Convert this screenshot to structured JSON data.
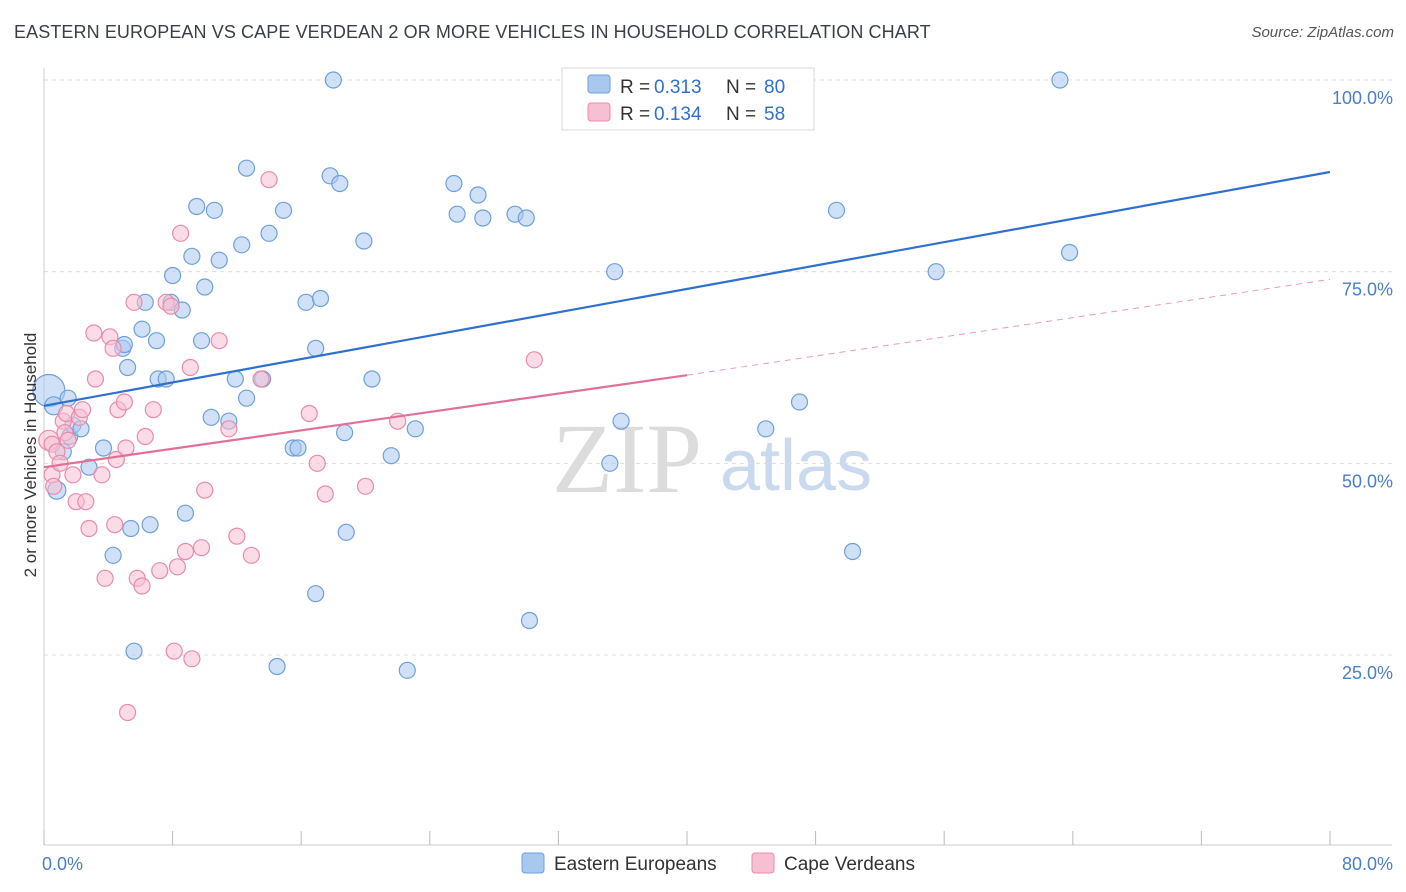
{
  "title": "EASTERN EUROPEAN VS CAPE VERDEAN 2 OR MORE VEHICLES IN HOUSEHOLD CORRELATION CHART",
  "source": "Source: ZipAtlas.com",
  "watermark": {
    "zip": "ZIP",
    "atlas": "atlas"
  },
  "chart_data": {
    "type": "scatter",
    "xlabel": "",
    "ylabel": "2 or more Vehicles in Household",
    "xlim": [
      0,
      80
    ],
    "ylim": [
      0,
      102
    ],
    "x_tick_labels": [
      "0.0%",
      "80.0%"
    ],
    "y_ticks": [
      {
        "value": 25,
        "label": "25.0%"
      },
      {
        "value": 50,
        "label": "50.0%"
      },
      {
        "value": 75,
        "label": "75.0%"
      },
      {
        "value": 100,
        "label": "100.0%"
      }
    ],
    "legend": {
      "rows": [
        {
          "r_label": "R = ",
          "r_value": "0.313",
          "n_label": "N = ",
          "n_value": "80"
        },
        {
          "r_label": "R = ",
          "r_value": "0.134",
          "n_label": "N = ",
          "n_value": "58"
        }
      ]
    },
    "series": [
      {
        "name": "Eastern Europeans",
        "color": "#a9c8f0",
        "stroke": "#6f9fd8",
        "line_color": "#2f6fce",
        "trend": {
          "x0": 0,
          "y0": 57.5,
          "x1": 80,
          "y1": 88
        },
        "points": [
          [
            0.3,
            59.5,
            16
          ],
          [
            0.6,
            57.5,
            9
          ],
          [
            0.8,
            46.5,
            9
          ],
          [
            1.2,
            51.5,
            8
          ],
          [
            1.5,
            58.5,
            8
          ],
          [
            1.6,
            53.5,
            8
          ],
          [
            1.8,
            55,
            8
          ],
          [
            2.3,
            54.5,
            8
          ],
          [
            2.8,
            49.5,
            8
          ],
          [
            3.7,
            52,
            8
          ],
          [
            4.3,
            38,
            8
          ],
          [
            4.9,
            65,
            8
          ],
          [
            5,
            65.5,
            8
          ],
          [
            5.2,
            62.5,
            8
          ],
          [
            5.4,
            41.5,
            8
          ],
          [
            5.6,
            25.5,
            8
          ],
          [
            6.1,
            67.5,
            8
          ],
          [
            6.3,
            71,
            8
          ],
          [
            6.6,
            42,
            8
          ],
          [
            7.0,
            66,
            8
          ],
          [
            7.1,
            61,
            8
          ],
          [
            7.6,
            61,
            8
          ],
          [
            7.9,
            71,
            8
          ],
          [
            8.0,
            74.5,
            8
          ],
          [
            8.6,
            70,
            8
          ],
          [
            8.8,
            43.5,
            8
          ],
          [
            9.2,
            77,
            8
          ],
          [
            9.5,
            83.5,
            8
          ],
          [
            9.8,
            66,
            8
          ],
          [
            10.0,
            73,
            8
          ],
          [
            10.4,
            56,
            8
          ],
          [
            10.6,
            83,
            8
          ],
          [
            10.9,
            76.5,
            8
          ],
          [
            11.5,
            55.5,
            8
          ],
          [
            11.9,
            61,
            8
          ],
          [
            12.3,
            78.5,
            8
          ],
          [
            12.6,
            58.5,
            8
          ],
          [
            12.6,
            88.5,
            8
          ],
          [
            13.6,
            61,
            8
          ],
          [
            14.0,
            80,
            8
          ],
          [
            14.5,
            23.5,
            8
          ],
          [
            14.9,
            83,
            8
          ],
          [
            15.5,
            52,
            8
          ],
          [
            15.8,
            52,
            8
          ],
          [
            16.3,
            71,
            8
          ],
          [
            16.9,
            65,
            8
          ],
          [
            16.9,
            33,
            8
          ],
          [
            17.2,
            71.5,
            8
          ],
          [
            17.8,
            87.5,
            8
          ],
          [
            18.0,
            100,
            8
          ],
          [
            18.4,
            86.5,
            8
          ],
          [
            18.7,
            54,
            8
          ],
          [
            18.8,
            41,
            8
          ],
          [
            19.9,
            79,
            8
          ],
          [
            20.4,
            61,
            8
          ],
          [
            21.6,
            51,
            8
          ],
          [
            22.6,
            23,
            8
          ],
          [
            23.1,
            54.5,
            8
          ],
          [
            25.5,
            86.5,
            8
          ],
          [
            25.7,
            82.5,
            8
          ],
          [
            27.0,
            85,
            8
          ],
          [
            27.3,
            82,
            8
          ],
          [
            29.3,
            82.5,
            8
          ],
          [
            30.0,
            82,
            8
          ],
          [
            30.2,
            29.5,
            8
          ],
          [
            35.2,
            50,
            8
          ],
          [
            35.5,
            75,
            8
          ],
          [
            35.9,
            55.5,
            8
          ],
          [
            39.3,
            100,
            8
          ],
          [
            44.9,
            54.5,
            8
          ],
          [
            47.0,
            58,
            8
          ],
          [
            49.3,
            83,
            8
          ],
          [
            50.3,
            38.5,
            8
          ],
          [
            55.5,
            75,
            8
          ],
          [
            63.2,
            100,
            8
          ],
          [
            63.8,
            77.5,
            8
          ]
        ]
      },
      {
        "name": "Cape Verdeans",
        "color": "#f7bfd2",
        "stroke": "#e88aab",
        "line_color": "#e36f95",
        "trend": {
          "x0": 0,
          "y0": 49.5,
          "x1": 40,
          "y1": 61.5
        },
        "trend_ext": {
          "x0": 40,
          "y0": 61.5,
          "x1": 80,
          "y1": 74
        },
        "points": [
          [
            0.3,
            53,
            10
          ],
          [
            0.5,
            52.5,
            8
          ],
          [
            0.5,
            48.5,
            8
          ],
          [
            0.6,
            47,
            8
          ],
          [
            0.8,
            51.5,
            8
          ],
          [
            1.0,
            50,
            8
          ],
          [
            1.2,
            55.5,
            8
          ],
          [
            1.3,
            54,
            8
          ],
          [
            1.4,
            56.5,
            8
          ],
          [
            1.5,
            53,
            8
          ],
          [
            1.8,
            48.5,
            8
          ],
          [
            2.0,
            45,
            8
          ],
          [
            2.2,
            56,
            8
          ],
          [
            2.4,
            57,
            8
          ],
          [
            2.6,
            45,
            8
          ],
          [
            2.8,
            41.5,
            8
          ],
          [
            3.1,
            67,
            8
          ],
          [
            3.2,
            61,
            8
          ],
          [
            3.6,
            48.5,
            8
          ],
          [
            3.8,
            35,
            8
          ],
          [
            4.1,
            66.5,
            8
          ],
          [
            4.3,
            65,
            8
          ],
          [
            4.4,
            42,
            8
          ],
          [
            4.5,
            50.5,
            8
          ],
          [
            4.6,
            57,
            8
          ],
          [
            5.0,
            58,
            8
          ],
          [
            5.1,
            52,
            8
          ],
          [
            5.2,
            17.5,
            8
          ],
          [
            5.6,
            71,
            8
          ],
          [
            5.8,
            35,
            8
          ],
          [
            6.1,
            34,
            8
          ],
          [
            6.3,
            53.5,
            8
          ],
          [
            6.8,
            57,
            8
          ],
          [
            7.2,
            36,
            8
          ],
          [
            7.6,
            71,
            8
          ],
          [
            7.9,
            70.5,
            8
          ],
          [
            8.1,
            25.5,
            8
          ],
          [
            8.3,
            36.5,
            8
          ],
          [
            8.5,
            80,
            8
          ],
          [
            8.8,
            38.5,
            8
          ],
          [
            9.1,
            62.5,
            8
          ],
          [
            9.2,
            24.5,
            8
          ],
          [
            9.8,
            39,
            8
          ],
          [
            10.0,
            46.5,
            8
          ],
          [
            10.9,
            66,
            8
          ],
          [
            11.5,
            54.5,
            8
          ],
          [
            12.0,
            40.5,
            8
          ],
          [
            12.9,
            38,
            8
          ],
          [
            13.5,
            61,
            8
          ],
          [
            14.0,
            87,
            8
          ],
          [
            16.5,
            56.5,
            8
          ],
          [
            17.0,
            50,
            8
          ],
          [
            17.5,
            46,
            8
          ],
          [
            20.0,
            47,
            8
          ],
          [
            22.0,
            55.5,
            8
          ],
          [
            30.5,
            63.5,
            8
          ]
        ]
      }
    ]
  }
}
